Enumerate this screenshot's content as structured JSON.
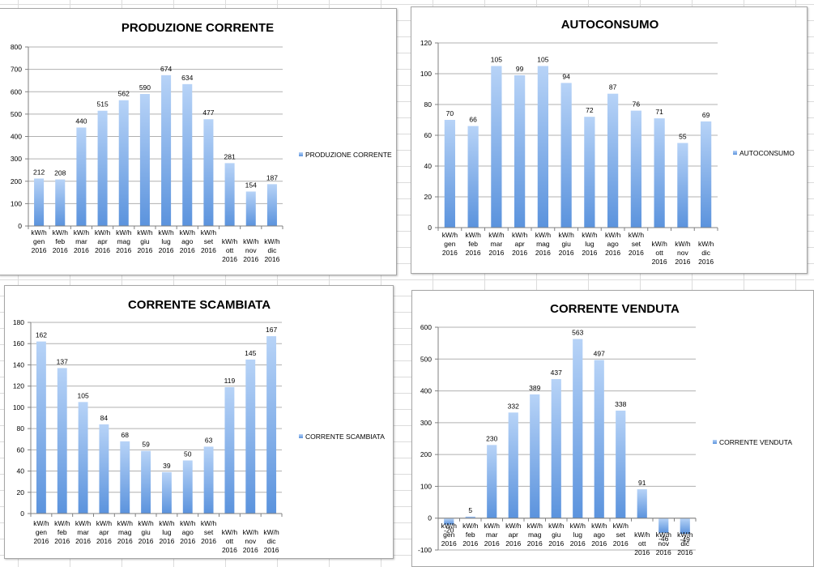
{
  "colors": {
    "bar_top": "#b7d3f7",
    "bar_bottom": "#5b93dd",
    "grid": "#b0b0b0",
    "axis": "#808080"
  },
  "chart_data": [
    {
      "id": "p1",
      "type": "bar",
      "title": "PRODUZIONE CORRENTE",
      "categories": [
        [
          "kW/h",
          "gen",
          "2016"
        ],
        [
          "kW/h",
          "feb",
          "2016"
        ],
        [
          "kW/h",
          "mar",
          "2016"
        ],
        [
          "kW/h",
          "apr",
          "2016"
        ],
        [
          "kW/h",
          "mag",
          "2016"
        ],
        [
          "kW/h",
          "giu",
          "2016"
        ],
        [
          "kW/h",
          "lug",
          "2016"
        ],
        [
          "kW/h",
          "ago",
          "2016"
        ],
        [
          "kW/h",
          "set",
          "2016"
        ],
        [
          "kW/h",
          "ott",
          "2016"
        ],
        [
          "kW/h",
          "nov",
          "2016"
        ],
        [
          "kW/h",
          "dic",
          "2016"
        ]
      ],
      "series": [
        {
          "name": "PRODUZIONE CORRENTE",
          "values": [
            212,
            208,
            440,
            515,
            562,
            590,
            674,
            634,
            477,
            281,
            154,
            187
          ]
        }
      ],
      "ylim": [
        0,
        800
      ],
      "yticks": [
        0,
        100,
        200,
        300,
        400,
        500,
        600,
        700,
        800
      ],
      "grid": true,
      "legend": "right"
    },
    {
      "id": "p2",
      "type": "bar",
      "title": "AUTOCONSUMO",
      "categories": [
        [
          "kW/h",
          "gen",
          "2016"
        ],
        [
          "kW/h",
          "feb",
          "2016"
        ],
        [
          "kW/h",
          "mar",
          "2016"
        ],
        [
          "kW/h",
          "apr",
          "2016"
        ],
        [
          "kW/h",
          "mag",
          "2016"
        ],
        [
          "kW/h",
          "giu",
          "2016"
        ],
        [
          "kW/h",
          "lug",
          "2016"
        ],
        [
          "kW/h",
          "ago",
          "2016"
        ],
        [
          "kW/h",
          "set",
          "2016"
        ],
        [
          "kW/h",
          "ott",
          "2016"
        ],
        [
          "kW/h",
          "nov",
          "2016"
        ],
        [
          "kW/h",
          "dic",
          "2016"
        ]
      ],
      "series": [
        {
          "name": "AUTOCONSUMO",
          "values": [
            70,
            66,
            105,
            99,
            105,
            94,
            72,
            87,
            76,
            71,
            55,
            69
          ]
        }
      ],
      "ylim": [
        0,
        120
      ],
      "yticks": [
        0,
        20,
        40,
        60,
        80,
        100,
        120
      ],
      "grid": true,
      "legend": "right"
    },
    {
      "id": "p3",
      "type": "bar",
      "title": "CORRENTE SCAMBIATA",
      "categories": [
        [
          "kW/h",
          "gen",
          "2016"
        ],
        [
          "kW/h",
          "feb",
          "2016"
        ],
        [
          "kW/h",
          "mar",
          "2016"
        ],
        [
          "kW/h",
          "apr",
          "2016"
        ],
        [
          "kW/h",
          "mag",
          "2016"
        ],
        [
          "kW/h",
          "giu",
          "2016"
        ],
        [
          "kW/h",
          "lug",
          "2016"
        ],
        [
          "kW/h",
          "ago",
          "2016"
        ],
        [
          "kW/h",
          "set",
          "2016"
        ],
        [
          "kW/h",
          "ott",
          "2016"
        ],
        [
          "kW/h",
          "nov",
          "2016"
        ],
        [
          "kW/h",
          "dic",
          "2016"
        ]
      ],
      "series": [
        {
          "name": "CORRENTE SCAMBIATA",
          "values": [
            162,
            137,
            105,
            84,
            68,
            59,
            39,
            50,
            63,
            119,
            145,
            167
          ]
        }
      ],
      "ylim": [
        0,
        180
      ],
      "yticks": [
        0,
        20,
        40,
        60,
        80,
        100,
        120,
        140,
        160,
        180
      ],
      "grid": true,
      "legend": "right"
    },
    {
      "id": "p4",
      "type": "bar",
      "title": "CORRENTE VENDUTA",
      "categories": [
        [
          "kW/h",
          "gen",
          "2016"
        ],
        [
          "kW/h",
          "feb",
          "2016"
        ],
        [
          "kW/h",
          "mar",
          "2016"
        ],
        [
          "kW/h",
          "apr",
          "2016"
        ],
        [
          "kW/h",
          "mag",
          "2016"
        ],
        [
          "kW/h",
          "giu",
          "2016"
        ],
        [
          "kW/h",
          "lug",
          "2016"
        ],
        [
          "kW/h",
          "ago",
          "2016"
        ],
        [
          "kW/h",
          "set",
          "2016"
        ],
        [
          "kW/h",
          "ott",
          "2016"
        ],
        [
          "kW/h",
          "nov",
          "2016"
        ],
        [
          "kW/h",
          "dic",
          "2016"
        ]
      ],
      "series": [
        {
          "name": "CORRENTE VENDUTA",
          "values": [
            -20,
            5,
            230,
            332,
            389,
            437,
            563,
            497,
            338,
            91,
            -46,
            -49
          ]
        }
      ],
      "ylim": [
        -100,
        600
      ],
      "yticks": [
        -100,
        0,
        100,
        200,
        300,
        400,
        500,
        600
      ],
      "grid": true,
      "legend": "right"
    }
  ]
}
